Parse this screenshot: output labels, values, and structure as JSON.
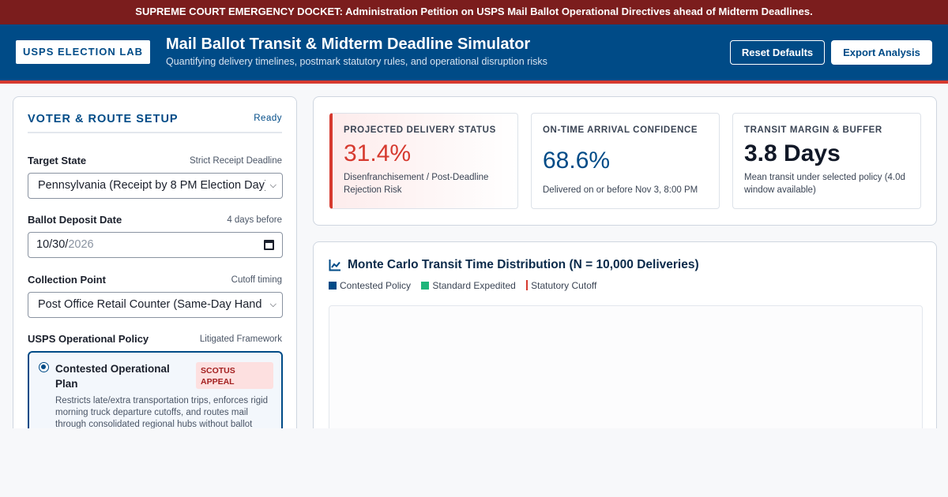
{
  "alert": {
    "text": "SUPREME COURT EMERGENCY DOCKET: Administration Petition on USPS Mail Ballot Operational Directives ahead of Midterm Deadlines."
  },
  "header": {
    "brand": "USPS ELECTION LAB",
    "title": "Mail Ballot Transit & Midterm Deadline Simulator",
    "subtitle": "Quantifying delivery timelines, postmark statutory rules, and operational disruption risks",
    "reset_label": "Reset Defaults",
    "export_label": "Export Analysis"
  },
  "setup": {
    "title": "VOTER & ROUTE SETUP",
    "status": "Ready",
    "state": {
      "label": "Target State",
      "hint": "Strict Receipt Deadline",
      "value": "Pennsylvania (Receipt by 8 PM Election Day)"
    },
    "deposit": {
      "label": "Ballot Deposit Date",
      "hint": "4 days before",
      "value_month_day": "10/30/",
      "value_year": "2026"
    },
    "collection": {
      "label": "Collection Point",
      "hint": "Cutoff timing",
      "value": "Post Office Retail Counter (Same-Day Hand C"
    },
    "policy": {
      "label": "USPS Operational Policy",
      "hint": "Litigated Framework",
      "option_name": "Contested Operational Plan",
      "option_badge": "SCOTUS APPEAL",
      "option_desc": "Restricts late/extra transportation trips, enforces rigid morning truck departure cutoffs, and routes mail through consolidated regional hubs without ballot"
    }
  },
  "stats": {
    "risk": {
      "label": "PROJECTED DELIVERY STATUS",
      "value": "31.4%",
      "desc": "Disenfranchisement / Post-Deadline Rejection Risk"
    },
    "confidence": {
      "label": "ON-TIME ARRIVAL CONFIDENCE",
      "value": "68.6%",
      "desc": "Delivered on or before Nov 3, 8:00 PM"
    },
    "margin": {
      "label": "TRANSIT MARGIN & BUFFER",
      "value": "3.8 Days",
      "desc": "Mean transit under selected policy (4.0d window available)"
    }
  },
  "chart": {
    "title": "Monte Carlo Transit Time Distribution (N = 10,000 Deliveries)",
    "legend": [
      "Contested Policy",
      "Standard Expedited",
      "Statutory Cutoff"
    ]
  },
  "colors": {
    "alert": "#7b1d1d",
    "brand_blue": "#004b87",
    "danger": "#d63a2f",
    "contested": "#004b87",
    "expedited": "#1fb57a",
    "cutoff": "#d63a2f"
  }
}
